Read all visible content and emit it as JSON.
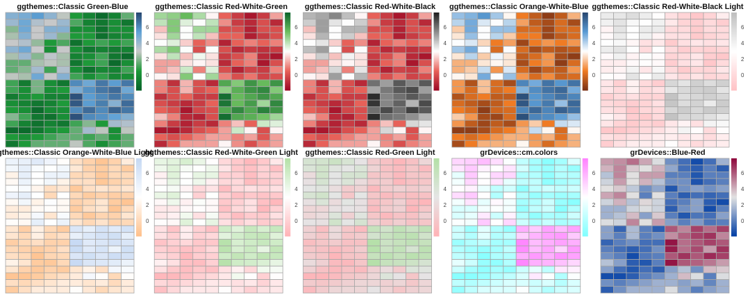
{
  "chart_data": [
    {
      "type": "heatmap",
      "title": "ggthemes::Classic Green-Blue",
      "palette": [
        "#09622a",
        "#1e9a39",
        "#c9c9c9",
        "#5fa2d6",
        "#26456e"
      ]
    },
    {
      "type": "heatmap",
      "title": "ggthemes::Classic Red-White-Green",
      "palette": [
        "#9c0824",
        "#e8625a",
        "#ffffff",
        "#6cbf5f",
        "#09622a"
      ]
    },
    {
      "type": "heatmap",
      "title": "ggthemes::Classic Red-White-Black",
      "palette": [
        "#9c0824",
        "#e8625a",
        "#ffffff",
        "#8c8c8c",
        "#1e1e1e"
      ]
    },
    {
      "type": "heatmap",
      "title": "ggthemes::Classic Orange-White-Blue",
      "palette": [
        "#7b3014",
        "#f07c24",
        "#ffffff",
        "#5a9bd4",
        "#26456e"
      ]
    },
    {
      "type": "heatmap",
      "title": "ggthemes::Classic Red-White-Black Light",
      "palette": [
        "#ffc2c5",
        "#ffffff",
        "#bfbfbf"
      ]
    },
    {
      "type": "heatmap",
      "title": "ggthemes::Classic Orange-White-Blue Light",
      "palette": [
        "#ffc08a",
        "#ffffff",
        "#c4d8f3"
      ]
    },
    {
      "type": "heatmap",
      "title": "ggthemes::Classic Red-White-Green Light",
      "palette": [
        "#ffb2b6",
        "#ffffff",
        "#b3e0a6"
      ]
    },
    {
      "type": "heatmap",
      "title": "ggthemes::Classic Red-Green Light",
      "palette": [
        "#ffb2b6",
        "#e5e5e5",
        "#b3e0a6"
      ]
    },
    {
      "type": "heatmap",
      "title": "grDevices::cm.colors",
      "palette": [
        "#80ffff",
        "#ffffff",
        "#ff80ff"
      ]
    },
    {
      "type": "heatmap",
      "title": "grDevices::Blue-Red",
      "palette": [
        "#023fa5",
        "#e2e2e2",
        "#8e063b"
      ]
    }
  ],
  "shared": {
    "value_range": [
      -1.9,
      7.8
    ],
    "legend_ticks": [
      "0",
      "2",
      "4",
      "6"
    ],
    "legend_tick_values": [
      0,
      2,
      4,
      6
    ],
    "cell_border_color": "#a6a6a6",
    "matrix": [
      [
        4.5,
        4.8,
        5.5,
        4.3,
        2.8,
        0.5,
        -0.5,
        -1.5,
        -0.5,
        1.5
      ],
      [
        4.0,
        5.0,
        3.5,
        3.0,
        4.0,
        1.2,
        -0.5,
        -1.0,
        0.0,
        -1.0
      ],
      [
        2.0,
        5.0,
        3.0,
        4.5,
        4.5,
        0.0,
        0.0,
        -1.2,
        0.0,
        0.0
      ],
      [
        2.5,
        4.5,
        3.0,
        4.0,
        2.0,
        0.5,
        0.5,
        -1.3,
        -0.5,
        0.0
      ],
      [
        3.0,
        3.5,
        2.2,
        0.5,
        1.2,
        -1.2,
        0.5,
        1.0,
        0.5,
        1.0
      ],
      [
        4.3,
        5.0,
        3.0,
        0.0,
        3.0,
        0.0,
        -1.0,
        -0.5,
        -0.8,
        -0.5
      ],
      [
        2.5,
        4.0,
        2.0,
        3.2,
        2.5,
        -0.5,
        0.0,
        1.0,
        -1.0,
        -1.5
      ],
      [
        1.5,
        1.5,
        2.5,
        2.8,
        2.5,
        -1.0,
        0.5,
        1.0,
        -1.5,
        0.0
      ],
      [
        1.5,
        2.0,
        3.8,
        1.0,
        3.5,
        0.0,
        -1.2,
        -0.3,
        -0.5,
        1.0
      ],
      [
        2.8,
        2.5,
        5.0,
        3.0,
        4.5,
        1.0,
        0.0,
        0.8,
        -0.3,
        0.0
      ],
      [
        1.0,
        -0.8,
        1.8,
        0.0,
        -1.0,
        6.0,
        5.0,
        6.5,
        5.5,
        6.5
      ],
      [
        1.0,
        0.0,
        1.8,
        0.0,
        0.5,
        4.8,
        5.8,
        6.5,
        6.8,
        5.0
      ],
      [
        -0.8,
        0.0,
        0.5,
        -0.5,
        -0.5,
        7.5,
        5.5,
        6.0,
        6.5,
        6.0
      ],
      [
        0.0,
        -0.5,
        -1.0,
        -0.5,
        0.5,
        7.3,
        5.5,
        6.3,
        4.5,
        6.8
      ],
      [
        0.5,
        0.0,
        -1.5,
        -0.2,
        0.0,
        6.0,
        6.8,
        6.0,
        7.0,
        6.5
      ],
      [
        2.0,
        1.0,
        -1.0,
        -1.2,
        0.0,
        7.5,
        6.0,
        5.8,
        5.3,
        4.5
      ],
      [
        1.0,
        -0.5,
        -1.2,
        -0.5,
        -1.0,
        1.0,
        2.0,
        0.5,
        3.8,
        3.5
      ],
      [
        -1.5,
        -1.5,
        -1.0,
        0.0,
        0.5,
        1.5,
        3.8,
        2.8,
        0.0,
        2.8
      ],
      [
        0.5,
        0.0,
        0.5,
        1.0,
        1.5,
        1.5,
        1.0,
        1.5,
        0.2,
        1.5
      ],
      [
        -1.0,
        0.5,
        1.5,
        1.5,
        1.5,
        2.8,
        1.2,
        0.0,
        1.0,
        1.5
      ]
    ]
  }
}
